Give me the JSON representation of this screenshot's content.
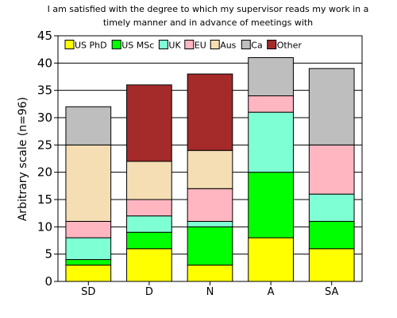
{
  "chart_data": {
    "type": "bar",
    "stacked": true,
    "title_lines": [
      "I am satisfied with the degree to which my supervisor reads my work in a",
      "timely manner and in advance of meetings with"
    ],
    "xlabel": "",
    "ylabel": "Arbitrary scale (n=96)",
    "ylim": [
      0,
      45
    ],
    "yticks": [
      0,
      5,
      10,
      15,
      20,
      25,
      30,
      35,
      40,
      45
    ],
    "grid": "horizontal",
    "legend_position": "top",
    "categories": [
      "SD",
      "D",
      "N",
      "A",
      "SA"
    ],
    "series": [
      {
        "name": "US PhD",
        "color": "#ffff00",
        "values": [
          3,
          6,
          3,
          8,
          6
        ]
      },
      {
        "name": "US MSc",
        "color": "#00ff00",
        "values": [
          1,
          3,
          7,
          12,
          5
        ]
      },
      {
        "name": "UK",
        "color": "#7fffd4",
        "values": [
          4,
          3,
          1,
          11,
          5
        ]
      },
      {
        "name": "EU",
        "color": "#ffb6c1",
        "values": [
          3,
          3,
          6,
          3,
          9
        ]
      },
      {
        "name": "Aus",
        "color": "#f5deb3",
        "values": [
          14,
          7,
          7,
          0,
          0
        ]
      },
      {
        "name": "Ca",
        "color": "#bebebe",
        "values": [
          7,
          0,
          0,
          7,
          14
        ]
      },
      {
        "name": "Other",
        "color": "#a52a2a",
        "values": [
          0,
          14,
          14,
          0,
          0
        ]
      }
    ]
  }
}
